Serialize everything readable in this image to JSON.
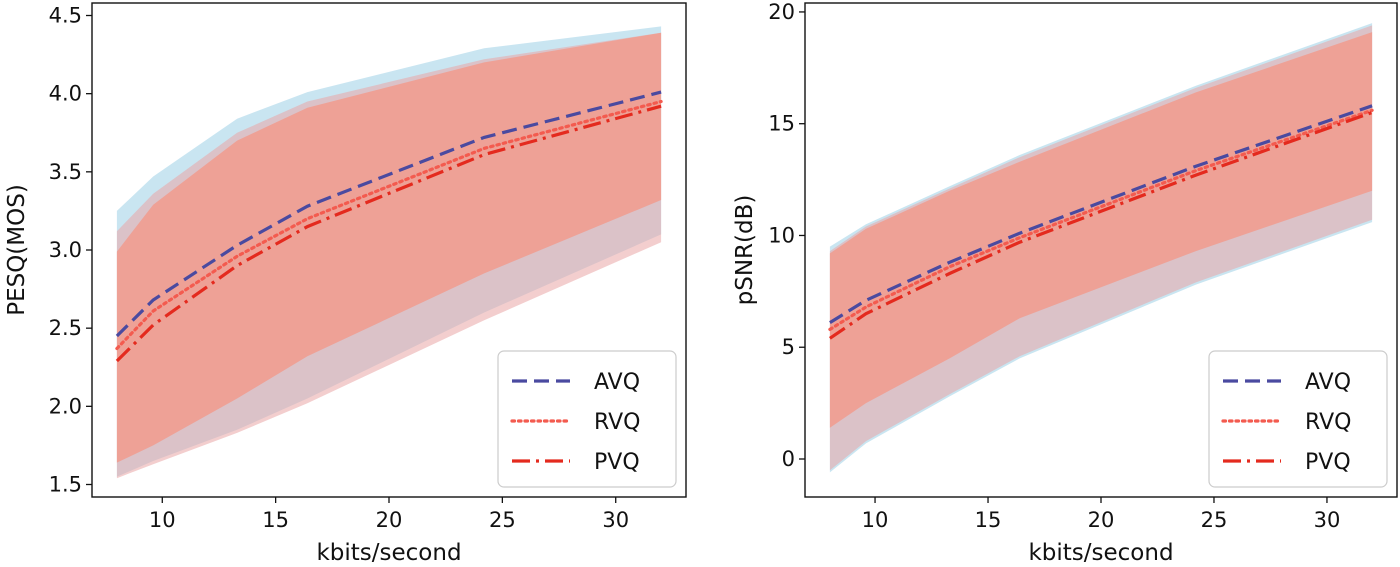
{
  "chart_data": [
    {
      "type": "line",
      "title": "",
      "xlabel": "kbits/second",
      "ylabel": "PESQ(MOS)",
      "xlim": [
        6.9,
        33.1
      ],
      "ylim": [
        1.42,
        4.58
      ],
      "xticks": [
        "10",
        "15",
        "20",
        "25",
        "30"
      ],
      "xtick_values": [
        10,
        15,
        20,
        25,
        30
      ],
      "yticks": [
        "1.5",
        "2.0",
        "2.5",
        "3.0",
        "3.5",
        "4.0",
        "4.5"
      ],
      "ytick_values": [
        1.5,
        2.0,
        2.5,
        3.0,
        3.5,
        4.0,
        4.5
      ],
      "grid": false,
      "legend_position": "lower-right",
      "x": [
        8,
        9.6,
        13.3,
        16.4,
        24.2,
        32
      ],
      "series": [
        {
          "name": "AVQ",
          "style": "dashed",
          "color": "#4a4aa0",
          "band_color": "#bfe0ef",
          "values": [
            2.45,
            2.68,
            3.03,
            3.28,
            3.72,
            4.01
          ],
          "lower": [
            1.55,
            1.65,
            1.85,
            2.05,
            2.6,
            3.1
          ],
          "upper": [
            3.25,
            3.47,
            3.84,
            4.01,
            4.29,
            4.43
          ]
        },
        {
          "name": "RVQ",
          "style": "dotted",
          "color": "#f35b4f",
          "band_color": "#e9a6a6",
          "values": [
            2.37,
            2.61,
            2.96,
            3.2,
            3.65,
            3.95
          ],
          "lower": [
            1.54,
            1.63,
            1.83,
            2.02,
            2.55,
            3.05
          ],
          "upper": [
            3.12,
            3.36,
            3.75,
            3.95,
            4.22,
            4.39
          ]
        },
        {
          "name": "PVQ",
          "style": "dashdot",
          "color": "#e42a1e",
          "band_color": "#f2998a",
          "values": [
            2.29,
            2.52,
            2.9,
            3.15,
            3.61,
            3.92
          ],
          "lower": [
            1.64,
            1.75,
            2.05,
            2.32,
            2.85,
            3.32
          ],
          "upper": [
            2.99,
            3.29,
            3.7,
            3.91,
            4.2,
            4.39
          ]
        }
      ]
    },
    {
      "type": "line",
      "title": "",
      "xlabel": "kbits/second",
      "ylabel": "pSNR(dB)",
      "xlim": [
        6.9,
        33.1
      ],
      "ylim": [
        -1.7,
        20.4
      ],
      "xticks": [
        "10",
        "15",
        "20",
        "25",
        "30"
      ],
      "xtick_values": [
        10,
        15,
        20,
        25,
        30
      ],
      "yticks": [
        "0",
        "5",
        "10",
        "15",
        "20"
      ],
      "ytick_values": [
        0,
        5,
        10,
        15,
        20
      ],
      "grid": false,
      "legend_position": "lower-right",
      "x": [
        8,
        9.6,
        13.3,
        16.4,
        24.2,
        32
      ],
      "series": [
        {
          "name": "AVQ",
          "style": "dashed",
          "color": "#4a4aa0",
          "band_color": "#bfe0ef",
          "values": [
            6.1,
            7.1,
            8.8,
            10.1,
            13.1,
            15.8
          ],
          "lower": [
            -0.6,
            0.7,
            2.8,
            4.5,
            7.8,
            10.6
          ],
          "upper": [
            9.5,
            10.5,
            12.2,
            13.6,
            16.7,
            19.5
          ]
        },
        {
          "name": "RVQ",
          "style": "dotted",
          "color": "#f35b4f",
          "band_color": "#e9a6a6",
          "values": [
            5.8,
            6.8,
            8.6,
            9.9,
            12.9,
            15.6
          ],
          "lower": [
            -0.5,
            0.8,
            2.9,
            4.6,
            7.9,
            10.7
          ],
          "upper": [
            9.3,
            10.4,
            12.1,
            13.5,
            16.6,
            19.4
          ]
        },
        {
          "name": "PVQ",
          "style": "dashdot",
          "color": "#e42a1e",
          "band_color": "#f2998a",
          "values": [
            5.4,
            6.5,
            8.3,
            9.7,
            12.7,
            15.5
          ],
          "lower": [
            1.4,
            2.5,
            4.5,
            6.3,
            9.3,
            12.0
          ],
          "upper": [
            9.2,
            10.3,
            12.0,
            13.3,
            16.4,
            19.1
          ]
        }
      ]
    }
  ]
}
